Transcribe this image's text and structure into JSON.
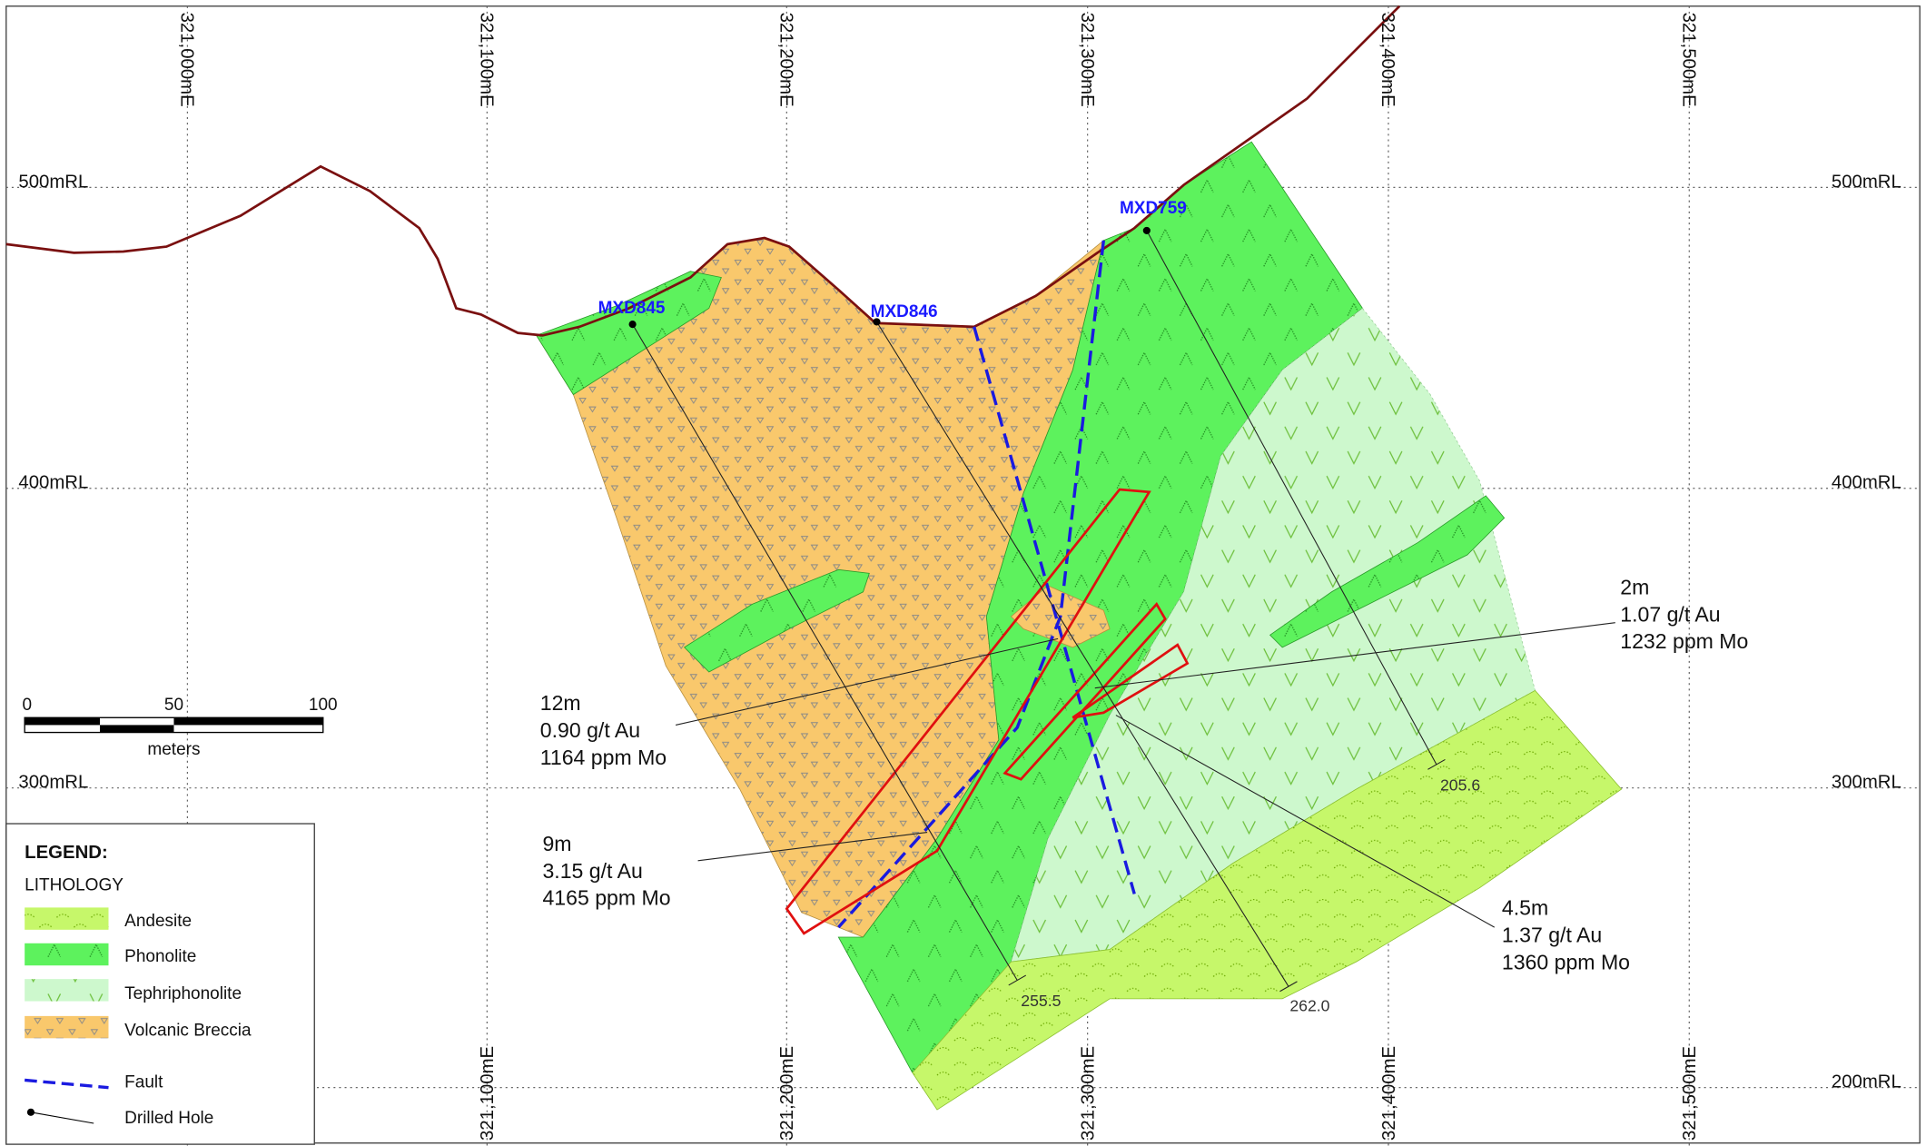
{
  "grid": {
    "eastings_top": [
      "321,000mE",
      "321,100mE",
      "321,200mE",
      "321,300mE",
      "321,400mE",
      "321,500mE"
    ],
    "eastings_bottom": [
      "321,100mE",
      "321,200mE",
      "321,300mE",
      "321,400mE",
      "321,500mE"
    ],
    "rl_left": [
      "500mRL",
      "400mRL",
      "300mRL"
    ],
    "rl_right": [
      "500mRL",
      "400mRL",
      "300mRL",
      "200mRL"
    ]
  },
  "holes": [
    {
      "name": "MXD845",
      "end_depth": "255.5"
    },
    {
      "name": "MXD846",
      "end_depth": "262.0"
    },
    {
      "name": "MXD759",
      "end_depth": "205.6"
    }
  ],
  "intercepts": [
    {
      "lines": [
        "12m",
        "0.90 g/t Au",
        "1164 ppm Mo"
      ]
    },
    {
      "lines": [
        "9m",
        "3.15 g/t Au",
        "4165 ppm Mo"
      ]
    },
    {
      "lines": [
        "2m",
        "1.07 g/t Au",
        "1232 ppm Mo"
      ]
    },
    {
      "lines": [
        "4.5m",
        "1.37 g/t Au",
        "1360 ppm Mo"
      ]
    }
  ],
  "scale_bar": {
    "ticks": [
      "0",
      "50",
      "100"
    ],
    "unit": "meters"
  },
  "legend": {
    "title": "LEGEND:",
    "subtitle": "LITHOLOGY",
    "items": [
      "Andesite",
      "Phonolite",
      "Tephriphonolite",
      "Volcanic Breccia",
      "Fault",
      "Drilled Hole"
    ]
  }
}
